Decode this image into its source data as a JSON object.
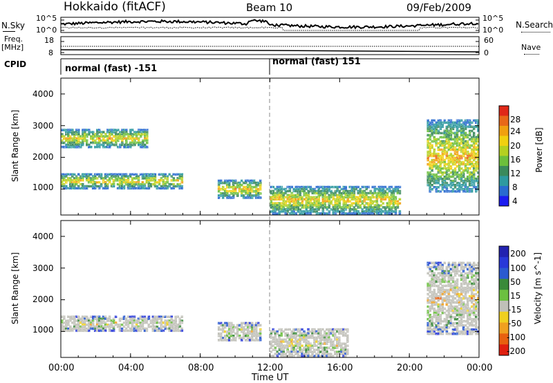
{
  "header": {
    "station": "Hokkaido (fitACF)",
    "beam": "Beam 10",
    "date": "09/Feb/2009"
  },
  "noise_panel": {
    "left_label": "N.Sky",
    "right_label": "N.Search",
    "tick_high": "10^5",
    "tick_low": "10^0"
  },
  "freq_panel": {
    "left_label_1": "Freq.",
    "left_label_2": "[MHz]",
    "left_tick_high": "18",
    "left_tick_low": "8",
    "right_label": "Nave",
    "right_tick_high": "60",
    "right_tick_low": "0"
  },
  "cpid": {
    "label": "CPID",
    "segments": [
      {
        "start_hour": 0,
        "text": "normal (fast) -151"
      },
      {
        "start_hour": 12,
        "text": "normal (fast) 151"
      }
    ]
  },
  "x_axis": {
    "label": "Time UT",
    "ticks": [
      "00:00",
      "04:00",
      "08:00",
      "12:00",
      "16:00",
      "20:00",
      "00:00"
    ],
    "range_hours": [
      0,
      24
    ]
  },
  "chart_data": [
    {
      "type": "heatmap",
      "name": "Power",
      "ylabel": "Slant Range [km]",
      "y_ticks": [
        "1000",
        "2000",
        "3000",
        "4000"
      ],
      "ylim_km": [
        180,
        4500
      ],
      "colorbar": {
        "label": "Power [dB]",
        "tick_labels": [
          "4",
          "8",
          "12",
          "16",
          "20",
          "24",
          "28"
        ],
        "colors": [
          "#1c1cf0",
          "#2a6bd0",
          "#2e9aa0",
          "#3a8a5c",
          "#6cbf3c",
          "#b4d020",
          "#f0d010",
          "#f0a010",
          "#e86818",
          "#e02818"
        ]
      },
      "features": [
        {
          "start_hour": 0.0,
          "end_hour": 7.0,
          "range_from_km": 1000,
          "range_to_km": 1500,
          "description": "strong band rising to the east"
        },
        {
          "start_hour": 0.0,
          "end_hour": 5.0,
          "range_from_km": 2300,
          "range_to_km": 2900,
          "description": "weak band"
        },
        {
          "start_hour": 9.0,
          "end_hour": 11.5,
          "range_from_km": 700,
          "range_to_km": 1300,
          "description": "strong patch"
        },
        {
          "start_hour": 12.0,
          "end_hour": 19.5,
          "range_from_km": 200,
          "range_to_km": 1100,
          "description": "moderate layered echoes"
        },
        {
          "start_hour": 21.0,
          "end_hour": 24.0,
          "range_from_km": 900,
          "range_to_km": 3200,
          "description": "descending strong band"
        }
      ]
    },
    {
      "type": "heatmap",
      "name": "Velocity",
      "ylabel": "Slant Range [km]",
      "y_ticks": [
        "1000",
        "2000",
        "3000",
        "4000"
      ],
      "ylim_km": [
        180,
        4500
      ],
      "colorbar": {
        "label": "Velocity [m s^-1]",
        "tick_labels": [
          "200",
          "100",
          "50",
          "15",
          "-15",
          "-50",
          "-100",
          "-200"
        ],
        "colors": [
          "#2222b0",
          "#2838d8",
          "#2a5ad0",
          "#3a8a3a",
          "#6cc040",
          "#c0c0b8",
          "#f0d020",
          "#f0a020",
          "#e86010",
          "#e02010"
        ]
      },
      "features": [
        {
          "start_hour": 0.0,
          "end_hour": 7.0,
          "range_from_km": 1000,
          "range_to_km": 1500,
          "description": "ground scatter (grey) band"
        },
        {
          "start_hour": 9.0,
          "end_hour": 11.5,
          "range_from_km": 700,
          "range_to_km": 1300,
          "description": "grey ground scatter patch"
        },
        {
          "start_hour": 12.0,
          "end_hour": 16.5,
          "range_from_km": 200,
          "range_to_km": 1100,
          "description": "blue positive velocity echoes"
        },
        {
          "start_hour": 21.0,
          "end_hour": 24.0,
          "range_from_km": 900,
          "range_to_km": 3200,
          "description": "grey and green band"
        }
      ]
    }
  ]
}
